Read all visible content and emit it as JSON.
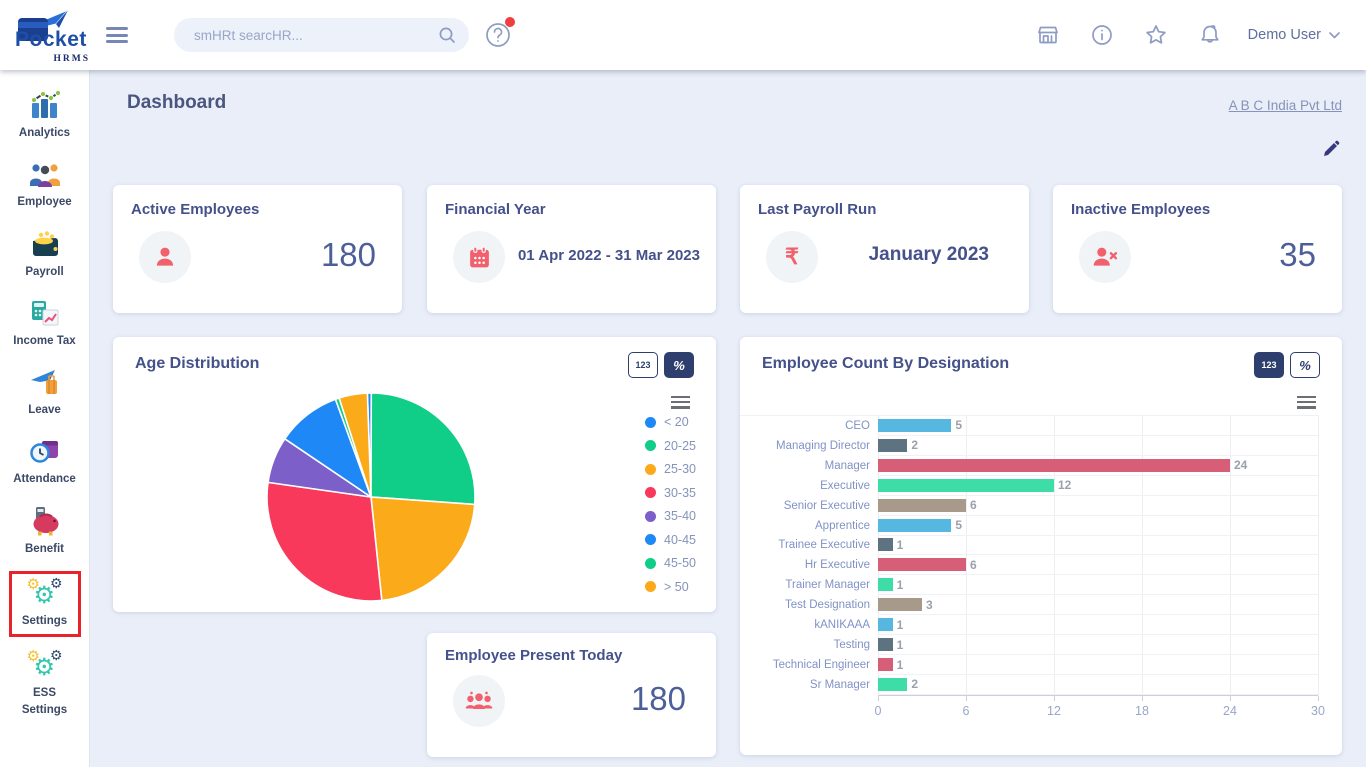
{
  "topbar": {
    "logo": {
      "name": "Pocket",
      "sub": "HRMS"
    },
    "search_placeholder": "smHRt searcHR...",
    "user_name": "Demo User"
  },
  "sidebar": {
    "items": [
      {
        "label": "Analytics",
        "icon": "analytics-icon"
      },
      {
        "label": "Employee",
        "icon": "employee-icon"
      },
      {
        "label": "Payroll",
        "icon": "payroll-icon"
      },
      {
        "label": "Income Tax",
        "icon": "income-tax-icon"
      },
      {
        "label": "Leave",
        "icon": "leave-icon"
      },
      {
        "label": "Attendance",
        "icon": "attendance-icon"
      },
      {
        "label": "Benefit",
        "icon": "benefit-icon"
      },
      {
        "label": "Settings",
        "icon": "settings-icon",
        "highlighted": true
      },
      {
        "label": "ESS Settings",
        "icon": "ess-settings-icon"
      }
    ]
  },
  "page": {
    "title": "Dashboard",
    "company_link": "A B C India Pvt Ltd"
  },
  "stat_cards": [
    {
      "title": "Active Employees",
      "value": "180",
      "icon": "person-icon"
    },
    {
      "title": "Financial Year",
      "value": "01 Apr 2022 - 31 Mar 2023",
      "icon": "calendar-icon"
    },
    {
      "title": "Last Payroll Run",
      "value": "January 2023",
      "icon": "rupee-icon"
    },
    {
      "title": "Inactive Employees",
      "value": "35",
      "icon": "person-x-icon"
    }
  ],
  "present_card": {
    "title": "Employee Present Today",
    "value": "180",
    "icon": "people-group-icon"
  },
  "chart_toggles": {
    "count": "123",
    "percent": "%"
  },
  "charts": {
    "age": {
      "active_toggle": "percent"
    },
    "designation": {
      "active_toggle": "count"
    }
  },
  "chart_data": [
    {
      "type": "pie",
      "title": "Age Distribution",
      "labels": [
        "< 20",
        "20-25",
        "25-30",
        "30-35",
        "35-40",
        "40-45",
        "45-50",
        "> 50"
      ],
      "values": [
        0.6,
        26.1,
        22.2,
        28.9,
        7.2,
        10.0,
        0.6,
        4.4
      ],
      "value_note": "percent shares estimated from slice angles; percent display mode active, no data labels shown",
      "colors": [
        "#1e88f7",
        "#10ce87",
        "#fbaa19",
        "#f8395c",
        "#7d5fc9",
        "#1e88f7",
        "#10ce87",
        "#fbaa19"
      ],
      "legend_position": "right"
    },
    {
      "type": "bar",
      "orientation": "horizontal",
      "title": "Employee Count By Designation",
      "categories": [
        "CEO",
        "Managing Director",
        "Manager",
        "Executive",
        "Senior Executive",
        "Apprentice",
        "Trainee Executive",
        "Hr Executive",
        "Trainer Manager",
        "Test Designation",
        "kANIKAAA",
        "Testing",
        "Technical Engineer",
        "Sr Manager"
      ],
      "values": [
        5,
        2,
        24,
        12,
        6,
        5,
        1,
        6,
        1,
        3,
        1,
        1,
        1,
        2
      ],
      "bar_colors_cycle": [
        "#56b8e1",
        "#5d7382",
        "#d65f77",
        "#3edca7",
        "#a79a8b"
      ],
      "xlim": [
        0,
        30
      ],
      "xticks": [
        0,
        6,
        12,
        18,
        24,
        30
      ],
      "grid": true
    }
  ]
}
